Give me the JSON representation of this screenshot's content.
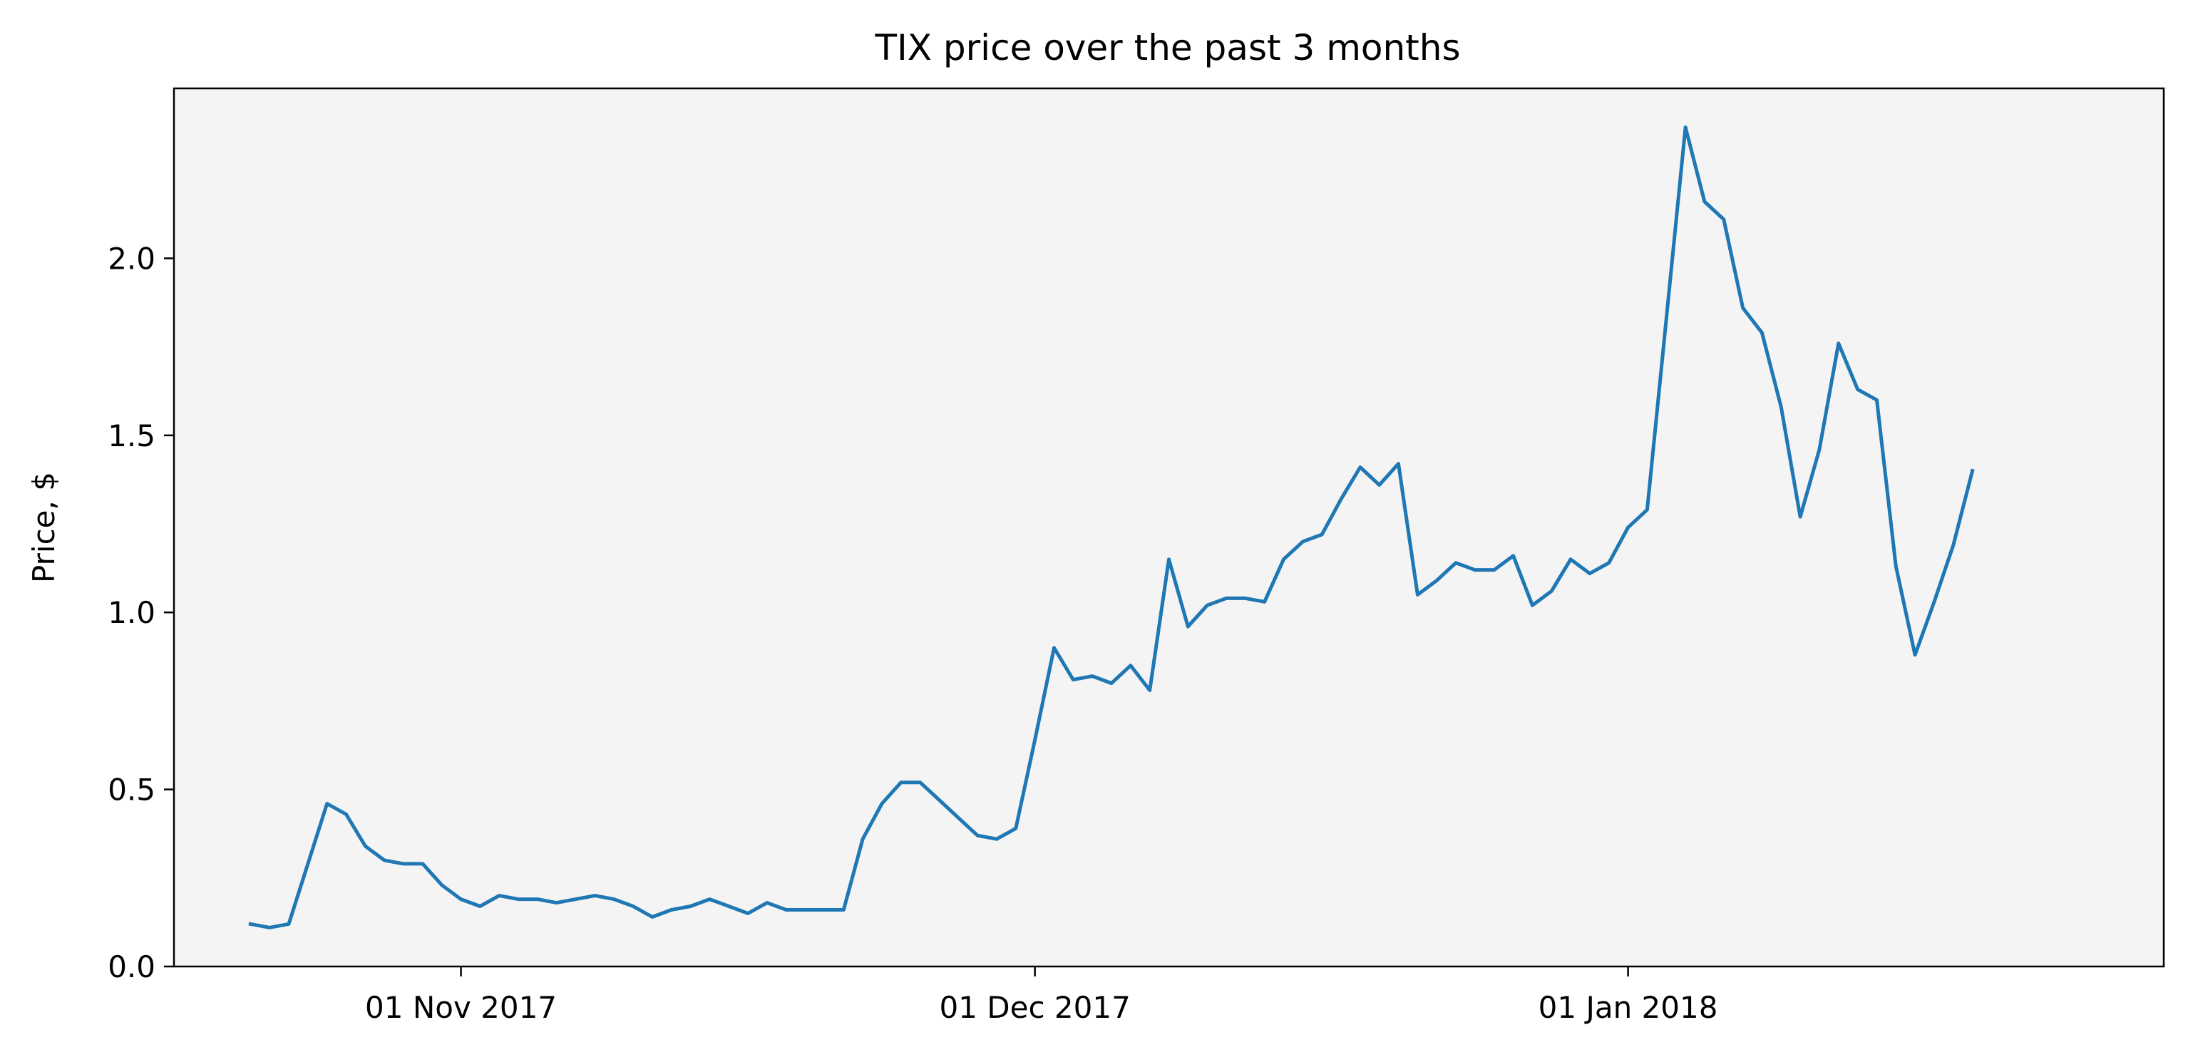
{
  "chart_data": {
    "type": "line",
    "title": "TIX price over the past 3 months",
    "xlabel": "",
    "ylabel": "Price, $",
    "x_type": "date",
    "xlim": [
      "2017-10-17",
      "2018-01-29"
    ],
    "ylim": [
      0.0,
      2.48
    ],
    "x_ticks": [
      {
        "date": "2017-11-01",
        "label": "01 Nov 2017"
      },
      {
        "date": "2017-12-01",
        "label": "01 Dec 2017"
      },
      {
        "date": "2018-01-01",
        "label": "01 Jan 2018"
      }
    ],
    "y_ticks": [
      {
        "value": 0.0,
        "label": "0.0"
      },
      {
        "value": 0.5,
        "label": "0.5"
      },
      {
        "value": 1.0,
        "label": "1.0"
      },
      {
        "value": 1.5,
        "label": "1.5"
      },
      {
        "value": 2.0,
        "label": "2.0"
      }
    ],
    "grid": false,
    "background_color": "#f4f4f4",
    "series": [
      {
        "color": "#1f77b4",
        "points": [
          [
            "2017-10-21",
            0.12
          ],
          [
            "2017-10-22",
            0.11
          ],
          [
            "2017-10-23",
            0.12
          ],
          [
            "2017-10-24",
            0.29
          ],
          [
            "2017-10-25",
            0.46
          ],
          [
            "2017-10-26",
            0.43
          ],
          [
            "2017-10-27",
            0.34
          ],
          [
            "2017-10-28",
            0.3
          ],
          [
            "2017-10-29",
            0.29
          ],
          [
            "2017-10-30",
            0.29
          ],
          [
            "2017-10-31",
            0.23
          ],
          [
            "2017-11-01",
            0.19
          ],
          [
            "2017-11-02",
            0.17
          ],
          [
            "2017-11-03",
            0.2
          ],
          [
            "2017-11-04",
            0.19
          ],
          [
            "2017-11-05",
            0.19
          ],
          [
            "2017-11-06",
            0.18
          ],
          [
            "2017-11-07",
            0.19
          ],
          [
            "2017-11-08",
            0.2
          ],
          [
            "2017-11-09",
            0.19
          ],
          [
            "2017-11-10",
            0.17
          ],
          [
            "2017-11-11",
            0.14
          ],
          [
            "2017-11-12",
            0.16
          ],
          [
            "2017-11-13",
            0.17
          ],
          [
            "2017-11-14",
            0.19
          ],
          [
            "2017-11-15",
            0.17
          ],
          [
            "2017-11-16",
            0.15
          ],
          [
            "2017-11-17",
            0.18
          ],
          [
            "2017-11-18",
            0.16
          ],
          [
            "2017-11-19",
            0.16
          ],
          [
            "2017-11-20",
            0.16
          ],
          [
            "2017-11-21",
            0.16
          ],
          [
            "2017-11-22",
            0.36
          ],
          [
            "2017-11-23",
            0.46
          ],
          [
            "2017-11-24",
            0.52
          ],
          [
            "2017-11-25",
            0.52
          ],
          [
            "2017-11-26",
            0.47
          ],
          [
            "2017-11-27",
            0.42
          ],
          [
            "2017-11-28",
            0.37
          ],
          [
            "2017-11-29",
            0.36
          ],
          [
            "2017-11-30",
            0.39
          ],
          [
            "2017-12-01",
            0.64
          ],
          [
            "2017-12-02",
            0.9
          ],
          [
            "2017-12-03",
            0.81
          ],
          [
            "2017-12-04",
            0.82
          ],
          [
            "2017-12-05",
            0.8
          ],
          [
            "2017-12-06",
            0.85
          ],
          [
            "2017-12-07",
            0.78
          ],
          [
            "2017-12-08",
            1.15
          ],
          [
            "2017-12-09",
            0.96
          ],
          [
            "2017-12-10",
            1.02
          ],
          [
            "2017-12-11",
            1.04
          ],
          [
            "2017-12-12",
            1.04
          ],
          [
            "2017-12-13",
            1.03
          ],
          [
            "2017-12-14",
            1.15
          ],
          [
            "2017-12-15",
            1.2
          ],
          [
            "2017-12-16",
            1.22
          ],
          [
            "2017-12-17",
            1.32
          ],
          [
            "2017-12-18",
            1.41
          ],
          [
            "2017-12-19",
            1.36
          ],
          [
            "2017-12-20",
            1.42
          ],
          [
            "2017-12-21",
            1.05
          ],
          [
            "2017-12-22",
            1.09
          ],
          [
            "2017-12-23",
            1.14
          ],
          [
            "2017-12-24",
            1.12
          ],
          [
            "2017-12-25",
            1.12
          ],
          [
            "2017-12-26",
            1.16
          ],
          [
            "2017-12-27",
            1.02
          ],
          [
            "2017-12-28",
            1.06
          ],
          [
            "2017-12-29",
            1.15
          ],
          [
            "2017-12-30",
            1.11
          ],
          [
            "2017-12-31",
            1.14
          ],
          [
            "2018-01-01",
            1.24
          ],
          [
            "2018-01-02",
            1.29
          ],
          [
            "2018-01-03",
            1.83
          ],
          [
            "2018-01-04",
            2.37
          ],
          [
            "2018-01-05",
            2.16
          ],
          [
            "2018-01-06",
            2.11
          ],
          [
            "2018-01-07",
            1.86
          ],
          [
            "2018-01-08",
            1.79
          ],
          [
            "2018-01-09",
            1.58
          ],
          [
            "2018-01-10",
            1.27
          ],
          [
            "2018-01-11",
            1.46
          ],
          [
            "2018-01-12",
            1.76
          ],
          [
            "2018-01-13",
            1.63
          ],
          [
            "2018-01-14",
            1.6
          ],
          [
            "2018-01-15",
            1.13
          ],
          [
            "2018-01-16",
            0.88
          ],
          [
            "2018-01-17",
            1.03
          ],
          [
            "2018-01-18",
            1.19
          ],
          [
            "2018-01-19",
            1.4
          ]
        ]
      }
    ]
  }
}
